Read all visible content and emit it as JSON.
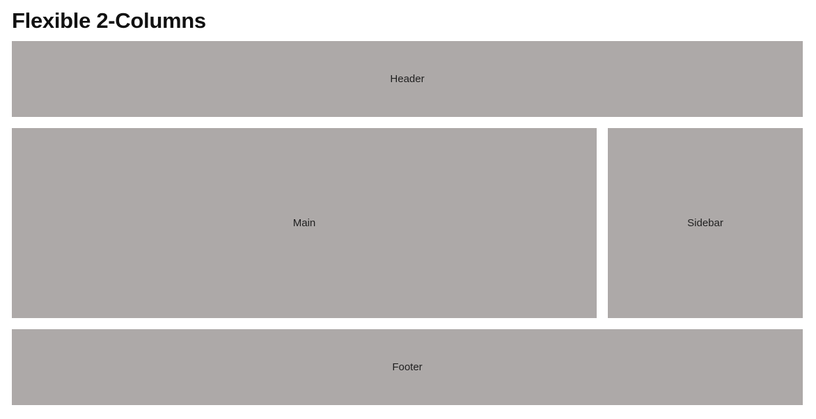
{
  "page": {
    "title": "Flexible 2-Columns"
  },
  "layout": {
    "header_label": "Header",
    "main_label": "Main",
    "sidebar_label": "Sidebar",
    "footer_label": "Footer"
  },
  "colors": {
    "block_background": "#ada9a8",
    "page_background": "#ffffff",
    "text": "#111111"
  }
}
